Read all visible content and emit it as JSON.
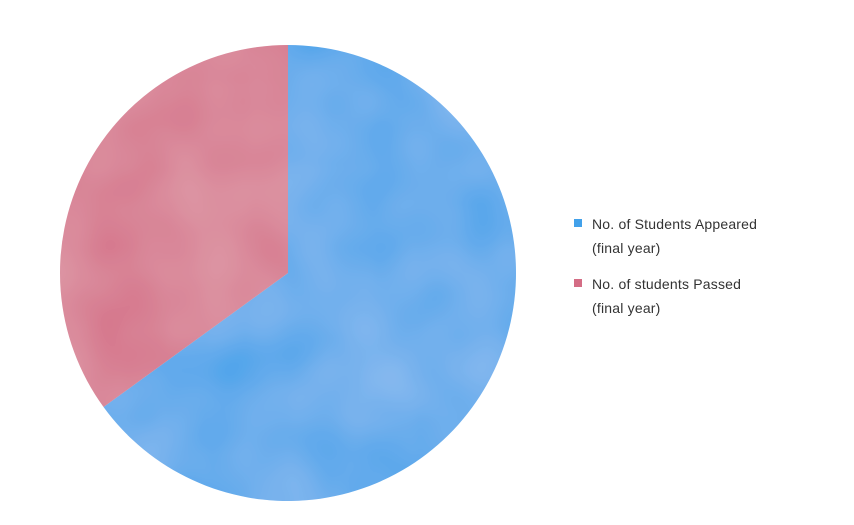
{
  "chart_data": {
    "type": "pie",
    "title": "",
    "slices": [
      {
        "label": "No. of Students Appeared\n(final year)",
        "value": 65,
        "color": "#42a1ea"
      },
      {
        "label": "No. of students Passed\n(final year)",
        "value": 35,
        "color": "#d46d85"
      }
    ],
    "start_angle_deg": 0,
    "direction": "clockwise",
    "legend_position": "right"
  }
}
